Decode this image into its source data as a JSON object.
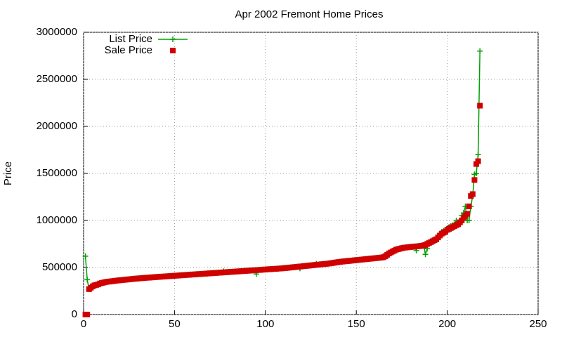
{
  "chart_data": {
    "type": "line",
    "title": "Apr 2002 Fremont Home Prices",
    "y_label": "Price",
    "x": [
      1,
      2,
      3,
      4,
      5,
      6,
      7,
      8,
      9,
      10,
      11,
      12,
      13,
      14,
      15,
      16,
      17,
      18,
      19,
      20,
      21,
      22,
      23,
      24,
      25,
      26,
      27,
      28,
      29,
      30,
      31,
      32,
      33,
      34,
      35,
      36,
      37,
      38,
      39,
      40,
      41,
      42,
      43,
      44,
      45,
      46,
      47,
      48,
      49,
      50,
      51,
      52,
      53,
      54,
      55,
      56,
      57,
      58,
      59,
      60,
      61,
      62,
      63,
      64,
      65,
      66,
      67,
      68,
      69,
      70,
      71,
      72,
      73,
      74,
      75,
      76,
      77,
      78,
      79,
      80,
      81,
      82,
      83,
      84,
      85,
      86,
      87,
      88,
      89,
      90,
      91,
      92,
      93,
      94,
      95,
      96,
      97,
      98,
      99,
      100,
      101,
      102,
      103,
      104,
      105,
      106,
      107,
      108,
      109,
      110,
      111,
      112,
      113,
      114,
      115,
      116,
      117,
      118,
      119,
      120,
      121,
      122,
      123,
      124,
      125,
      126,
      127,
      128,
      129,
      130,
      131,
      132,
      133,
      134,
      135,
      136,
      137,
      138,
      139,
      140,
      141,
      142,
      143,
      144,
      145,
      146,
      147,
      148,
      149,
      150,
      151,
      152,
      153,
      154,
      155,
      156,
      157,
      158,
      159,
      160,
      161,
      162,
      163,
      164,
      165,
      166,
      167,
      168,
      169,
      170,
      171,
      172,
      173,
      174,
      175,
      176,
      177,
      178,
      179,
      180,
      181,
      182,
      183,
      184,
      185,
      186,
      187,
      188,
      189,
      190,
      191,
      192,
      193,
      194,
      195,
      196,
      197,
      198,
      199,
      200,
      201,
      202,
      203,
      204,
      205,
      206,
      207,
      208,
      209,
      210,
      211,
      212,
      213,
      214,
      215,
      216,
      217,
      218
    ],
    "series": [
      {
        "name": "List Price",
        "color": "#00a000",
        "style": "linespoints",
        "values": [
          620000,
          370000,
          270000,
          290000,
          305000,
          313000,
          318000,
          324000,
          333000,
          338000,
          343000,
          348000,
          351000,
          353000,
          355000,
          358000,
          360000,
          363000,
          365000,
          367000,
          369000,
          371000,
          373000,
          375000,
          377000,
          379000,
          381000,
          383000,
          385000,
          386000,
          388000,
          389000,
          391000,
          393000,
          394000,
          395000,
          397000,
          398000,
          400000,
          401000,
          403000,
          404000,
          405000,
          407000,
          408000,
          409000,
          411000,
          412000,
          413000,
          415000,
          416000,
          417000,
          419000,
          420000,
          421000,
          423000,
          424000,
          425000,
          427000,
          428000,
          429000,
          431000,
          432000,
          433000,
          435000,
          436000,
          437000,
          439000,
          440000,
          441000,
          443000,
          444000,
          445000,
          447000,
          448000,
          449000,
          460000,
          452000,
          453000,
          455000,
          456000,
          457000,
          459000,
          460000,
          461000,
          463000,
          464000,
          465000,
          467000,
          468000,
          469000,
          471000,
          472000,
          473000,
          430000,
          476000,
          477000,
          479000,
          480000,
          481000,
          483000,
          484000,
          485000,
          487000,
          488000,
          489000,
          491000,
          492000,
          493000,
          495000,
          497000,
          499000,
          501000,
          503000,
          505000,
          507000,
          509000,
          511000,
          490000,
          515000,
          517000,
          519000,
          521000,
          523000,
          525000,
          527000,
          529000,
          540000,
          533000,
          535000,
          537000,
          539000,
          541000,
          543000,
          545000,
          548000,
          551000,
          554000,
          557000,
          560000,
          563000,
          565000,
          567000,
          569000,
          571000,
          573000,
          575000,
          577000,
          579000,
          581000,
          583000,
          585000,
          587000,
          589000,
          591000,
          593000,
          595000,
          597000,
          599000,
          601000,
          603000,
          605000,
          607000,
          609000,
          613000,
          623000,
          638000,
          653000,
          663000,
          673000,
          683000,
          693000,
          698000,
          703000,
          708000,
          713000,
          715000,
          717000,
          719000,
          721000,
          723000,
          725000,
          680000,
          729000,
          731000,
          733000,
          738000,
          640000,
          700000,
          763000,
          773000,
          783000,
          793000,
          803000,
          830000,
          860000,
          880000,
          890000,
          900000,
          920000,
          930000,
          940000,
          950000,
          960000,
          1000000,
          980000,
          1000000,
          1050000,
          1080000,
          1150000,
          1000000,
          1000000,
          1150000,
          1260000,
          1490000,
          1500000,
          1700000,
          2800000
        ]
      },
      {
        "name": "Sale Price",
        "color": "#d00000",
        "style": "points",
        "values": [
          0,
          0,
          270000,
          285000,
          300000,
          310000,
          315000,
          320000,
          330000,
          335000,
          340000,
          345000,
          348000,
          350000,
          352000,
          355000,
          357000,
          360000,
          362000,
          364000,
          366000,
          368000,
          370000,
          372000,
          374000,
          376000,
          378000,
          380000,
          382000,
          383000,
          385000,
          386000,
          388000,
          390000,
          391000,
          392000,
          394000,
          395000,
          397000,
          398000,
          400000,
          401000,
          402000,
          404000,
          405000,
          406000,
          408000,
          409000,
          410000,
          412000,
          413000,
          414000,
          416000,
          417000,
          418000,
          420000,
          421000,
          422000,
          424000,
          425000,
          426000,
          428000,
          429000,
          430000,
          432000,
          433000,
          434000,
          436000,
          437000,
          438000,
          440000,
          441000,
          442000,
          444000,
          445000,
          446000,
          448000,
          449000,
          450000,
          452000,
          453000,
          454000,
          456000,
          457000,
          458000,
          460000,
          461000,
          462000,
          464000,
          465000,
          466000,
          468000,
          469000,
          470000,
          472000,
          473000,
          474000,
          476000,
          477000,
          478000,
          480000,
          481000,
          482000,
          484000,
          485000,
          486000,
          488000,
          489000,
          490000,
          492000,
          494000,
          496000,
          498000,
          500000,
          502000,
          504000,
          506000,
          508000,
          510000,
          512000,
          514000,
          516000,
          518000,
          520000,
          522000,
          524000,
          526000,
          528000,
          530000,
          532000,
          534000,
          536000,
          538000,
          540000,
          542000,
          545000,
          548000,
          551000,
          554000,
          557000,
          560000,
          562000,
          564000,
          566000,
          568000,
          570000,
          572000,
          574000,
          576000,
          578000,
          580000,
          582000,
          584000,
          586000,
          588000,
          590000,
          592000,
          594000,
          596000,
          598000,
          600000,
          602000,
          604000,
          606000,
          610000,
          620000,
          635000,
          650000,
          660000,
          670000,
          680000,
          690000,
          695000,
          700000,
          705000,
          710000,
          712000,
          714000,
          716000,
          718000,
          720000,
          722000,
          724000,
          726000,
          728000,
          730000,
          735000,
          740000,
          750000,
          760000,
          770000,
          780000,
          790000,
          800000,
          820000,
          840000,
          860000,
          870000,
          880000,
          900000,
          910000,
          920000,
          930000,
          940000,
          950000,
          960000,
          980000,
          1000000,
          1030000,
          1050000,
          1070000,
          1150000,
          1260000,
          1280000,
          1430000,
          1600000,
          1630000,
          2220000
        ]
      }
    ],
    "xlim": [
      0,
      250
    ],
    "xticks": [
      0,
      50,
      100,
      150,
      200,
      250
    ],
    "ylim": [
      0,
      3000000
    ],
    "yticks": [
      0,
      500000,
      1000000,
      1500000,
      2000000,
      2500000,
      3000000
    ],
    "grid": true,
    "legend": "top-left"
  }
}
